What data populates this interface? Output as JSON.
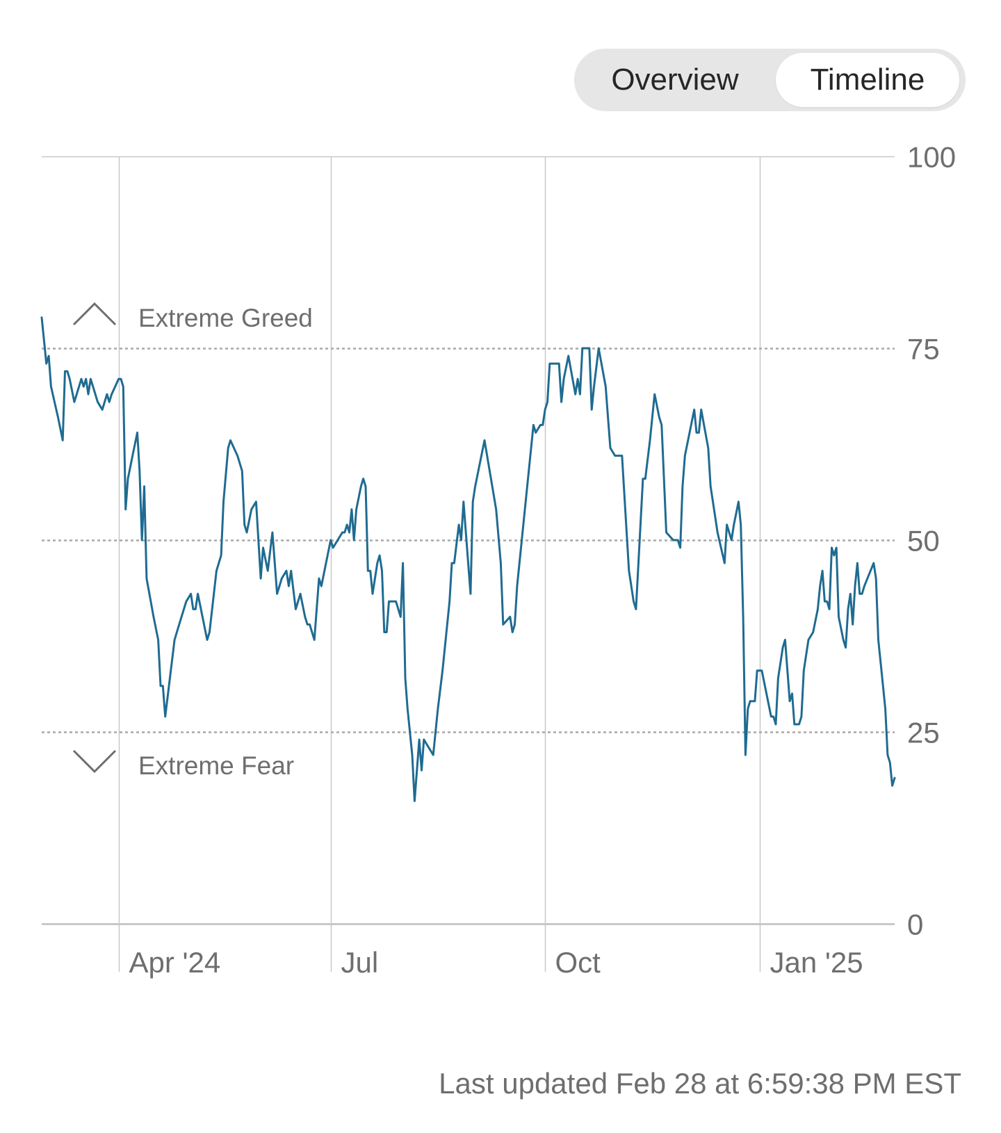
{
  "toggle": {
    "overview_label": "Overview",
    "timeline_label": "Timeline",
    "active": "Timeline"
  },
  "zones": {
    "greed_label": "Extreme Greed",
    "fear_label": "Extreme Fear"
  },
  "footer": {
    "last_updated": "Last updated Feb 28 at 6:59:38 PM EST"
  },
  "colors": {
    "line": "#1f6b91",
    "grid": "#c8c8c8",
    "dashed": "#a8a8a8",
    "tick_text": "#6e6e6e",
    "toggle_bg": "#e6e6e6"
  },
  "chart_data": {
    "type": "line",
    "title": "",
    "xlabel": "",
    "ylabel": "",
    "ylim": [
      0,
      100
    ],
    "yticks": [
      {
        "value": 100,
        "label": "100"
      },
      {
        "value": 75,
        "label": "75"
      },
      {
        "value": 50,
        "label": "50"
      },
      {
        "value": 25,
        "label": "25"
      },
      {
        "value": 0,
        "label": "0"
      }
    ],
    "xlim": [
      "2024-02-28",
      "2025-02-28"
    ],
    "xticks": [
      {
        "date": "2024-04-01",
        "label": "Apr '24"
      },
      {
        "date": "2024-07-01",
        "label": "Jul"
      },
      {
        "date": "2024-10-01",
        "label": "Oct"
      },
      {
        "date": "2025-01-01",
        "label": "Jan '25"
      }
    ],
    "dashed_levels": [
      75,
      50,
      25
    ],
    "grid": true,
    "series": [
      {
        "points": [
          [
            "2024-02-28",
            79
          ],
          [
            "2024-03-01",
            73
          ],
          [
            "2024-03-02",
            74
          ],
          [
            "2024-03-03",
            70
          ],
          [
            "2024-03-06",
            66
          ],
          [
            "2024-03-08",
            63
          ],
          [
            "2024-03-09",
            72
          ],
          [
            "2024-03-10",
            72
          ],
          [
            "2024-03-11",
            71
          ],
          [
            "2024-03-13",
            68
          ],
          [
            "2024-03-16",
            71
          ],
          [
            "2024-03-17",
            70
          ],
          [
            "2024-03-18",
            71
          ],
          [
            "2024-03-19",
            69
          ],
          [
            "2024-03-20",
            71
          ],
          [
            "2024-03-21",
            70
          ],
          [
            "2024-03-23",
            68
          ],
          [
            "2024-03-25",
            67
          ],
          [
            "2024-03-26",
            68
          ],
          [
            "2024-03-27",
            69
          ],
          [
            "2024-03-28",
            68
          ],
          [
            "2024-03-29",
            69
          ],
          [
            "2024-04-01",
            71
          ],
          [
            "2024-04-02",
            71
          ],
          [
            "2024-04-03",
            70
          ],
          [
            "2024-04-04",
            54
          ],
          [
            "2024-04-05",
            58
          ],
          [
            "2024-04-07",
            61
          ],
          [
            "2024-04-09",
            64
          ],
          [
            "2024-04-10",
            59
          ],
          [
            "2024-04-11",
            50
          ],
          [
            "2024-04-12",
            57
          ],
          [
            "2024-04-13",
            45
          ],
          [
            "2024-04-16",
            40
          ],
          [
            "2024-04-18",
            37
          ],
          [
            "2024-04-19",
            31
          ],
          [
            "2024-04-20",
            31
          ],
          [
            "2024-04-21",
            27
          ],
          [
            "2024-04-23",
            32
          ],
          [
            "2024-04-25",
            37
          ],
          [
            "2024-04-26",
            38
          ],
          [
            "2024-04-28",
            40
          ],
          [
            "2024-04-30",
            42
          ],
          [
            "2024-05-02",
            43
          ],
          [
            "2024-05-03",
            41
          ],
          [
            "2024-05-04",
            41
          ],
          [
            "2024-05-05",
            43
          ],
          [
            "2024-05-07",
            40
          ],
          [
            "2024-05-09",
            37
          ],
          [
            "2024-05-10",
            38
          ],
          [
            "2024-05-13",
            46
          ],
          [
            "2024-05-15",
            48
          ],
          [
            "2024-05-16",
            55
          ],
          [
            "2024-05-18",
            62
          ],
          [
            "2024-05-19",
            63
          ],
          [
            "2024-05-22",
            61
          ],
          [
            "2024-05-24",
            59
          ],
          [
            "2024-05-25",
            52
          ],
          [
            "2024-05-26",
            51
          ],
          [
            "2024-05-28",
            54
          ],
          [
            "2024-05-30",
            55
          ],
          [
            "2024-06-01",
            45
          ],
          [
            "2024-06-02",
            49
          ],
          [
            "2024-06-04",
            46
          ],
          [
            "2024-06-06",
            51
          ],
          [
            "2024-06-08",
            43
          ],
          [
            "2024-06-10",
            45
          ],
          [
            "2024-06-12",
            46
          ],
          [
            "2024-06-13",
            44
          ],
          [
            "2024-06-14",
            46
          ],
          [
            "2024-06-16",
            41
          ],
          [
            "2024-06-18",
            43
          ],
          [
            "2024-06-20",
            40
          ],
          [
            "2024-06-21",
            39
          ],
          [
            "2024-06-22",
            39
          ],
          [
            "2024-06-24",
            37
          ],
          [
            "2024-06-26",
            45
          ],
          [
            "2024-06-27",
            44
          ],
          [
            "2024-06-29",
            47
          ],
          [
            "2024-07-01",
            50
          ],
          [
            "2024-07-02",
            49
          ],
          [
            "2024-07-04",
            50
          ],
          [
            "2024-07-06",
            51
          ],
          [
            "2024-07-07",
            51
          ],
          [
            "2024-07-08",
            52
          ],
          [
            "2024-07-09",
            51
          ],
          [
            "2024-07-10",
            54
          ],
          [
            "2024-07-11",
            50
          ],
          [
            "2024-07-12",
            54
          ],
          [
            "2024-07-14",
            57
          ],
          [
            "2024-07-15",
            58
          ],
          [
            "2024-07-16",
            57
          ],
          [
            "2024-07-17",
            46
          ],
          [
            "2024-07-18",
            46
          ],
          [
            "2024-07-19",
            43
          ],
          [
            "2024-07-21",
            47
          ],
          [
            "2024-07-22",
            48
          ],
          [
            "2024-07-23",
            46
          ],
          [
            "2024-07-24",
            38
          ],
          [
            "2024-07-25",
            38
          ],
          [
            "2024-07-26",
            42
          ],
          [
            "2024-07-29",
            42
          ],
          [
            "2024-07-31",
            40
          ],
          [
            "2024-08-01",
            47
          ],
          [
            "2024-08-02",
            32
          ],
          [
            "2024-08-03",
            28
          ],
          [
            "2024-08-05",
            22
          ],
          [
            "2024-08-06",
            16
          ],
          [
            "2024-08-08",
            24
          ],
          [
            "2024-08-09",
            20
          ],
          [
            "2024-08-10",
            24
          ],
          [
            "2024-08-14",
            22
          ],
          [
            "2024-08-16",
            28
          ],
          [
            "2024-08-18",
            33
          ],
          [
            "2024-08-21",
            42
          ],
          [
            "2024-08-22",
            47
          ],
          [
            "2024-08-23",
            47
          ],
          [
            "2024-08-25",
            52
          ],
          [
            "2024-08-26",
            50
          ],
          [
            "2024-08-27",
            55
          ],
          [
            "2024-08-30",
            43
          ],
          [
            "2024-08-31",
            55
          ],
          [
            "2024-09-01",
            57
          ],
          [
            "2024-09-05",
            63
          ],
          [
            "2024-09-10",
            54
          ],
          [
            "2024-09-12",
            47
          ],
          [
            "2024-09-13",
            39
          ],
          [
            "2024-09-16",
            40
          ],
          [
            "2024-09-17",
            38
          ],
          [
            "2024-09-18",
            39
          ],
          [
            "2024-09-19",
            44
          ],
          [
            "2024-09-23",
            56
          ],
          [
            "2024-09-26",
            65
          ],
          [
            "2024-09-27",
            64
          ],
          [
            "2024-09-29",
            65
          ],
          [
            "2024-09-30",
            65
          ],
          [
            "2024-10-01",
            67
          ],
          [
            "2024-10-02",
            68
          ],
          [
            "2024-10-03",
            73
          ],
          [
            "2024-10-07",
            73
          ],
          [
            "2024-10-08",
            68
          ],
          [
            "2024-10-09",
            71
          ],
          [
            "2024-10-11",
            74
          ],
          [
            "2024-10-14",
            69
          ],
          [
            "2024-10-15",
            71
          ],
          [
            "2024-10-16",
            69
          ],
          [
            "2024-10-17",
            75
          ],
          [
            "2024-10-18",
            75
          ],
          [
            "2024-10-20",
            75
          ],
          [
            "2024-10-21",
            67
          ],
          [
            "2024-10-22",
            70
          ],
          [
            "2024-10-24",
            75
          ],
          [
            "2024-10-27",
            70
          ],
          [
            "2024-10-28",
            66
          ],
          [
            "2024-10-29",
            62
          ],
          [
            "2024-10-31",
            61
          ],
          [
            "2024-11-01",
            61
          ],
          [
            "2024-11-03",
            61
          ],
          [
            "2024-11-06",
            46
          ],
          [
            "2024-11-08",
            42
          ],
          [
            "2024-11-09",
            41
          ],
          [
            "2024-11-12",
            58
          ],
          [
            "2024-11-13",
            58
          ],
          [
            "2024-11-15",
            63
          ],
          [
            "2024-11-17",
            69
          ],
          [
            "2024-11-19",
            66
          ],
          [
            "2024-11-20",
            65
          ],
          [
            "2024-11-22",
            51
          ],
          [
            "2024-11-25",
            50
          ],
          [
            "2024-11-27",
            50
          ],
          [
            "2024-11-28",
            49
          ],
          [
            "2024-11-29",
            57
          ],
          [
            "2024-11-30",
            61
          ],
          [
            "2024-12-02",
            64
          ],
          [
            "2024-12-04",
            67
          ],
          [
            "2024-12-05",
            64
          ],
          [
            "2024-12-06",
            64
          ],
          [
            "2024-12-07",
            67
          ],
          [
            "2024-12-10",
            62
          ],
          [
            "2024-12-11",
            57
          ],
          [
            "2024-12-13",
            53
          ],
          [
            "2024-12-14",
            51
          ],
          [
            "2024-12-17",
            47
          ],
          [
            "2024-12-18",
            52
          ],
          [
            "2024-12-19",
            51
          ],
          [
            "2024-12-20",
            50
          ],
          [
            "2024-12-21",
            52
          ],
          [
            "2024-12-23",
            55
          ],
          [
            "2024-12-24",
            52
          ],
          [
            "2024-12-25",
            40
          ],
          [
            "2024-12-26",
            22
          ],
          [
            "2024-12-27",
            28
          ],
          [
            "2024-12-28",
            29
          ],
          [
            "2024-12-30",
            29
          ],
          [
            "2024-12-31",
            33
          ],
          [
            "2025-01-02",
            33
          ],
          [
            "2025-01-04",
            30
          ],
          [
            "2025-01-06",
            27
          ],
          [
            "2025-01-07",
            27
          ],
          [
            "2025-01-08",
            26
          ],
          [
            "2025-01-09",
            32
          ],
          [
            "2025-01-11",
            36
          ],
          [
            "2025-01-12",
            37
          ],
          [
            "2025-01-14",
            29
          ],
          [
            "2025-01-15",
            30
          ],
          [
            "2025-01-16",
            26
          ],
          [
            "2025-01-18",
            26
          ],
          [
            "2025-01-19",
            27
          ],
          [
            "2025-01-20",
            33
          ],
          [
            "2025-01-22",
            37
          ],
          [
            "2025-01-24",
            38
          ],
          [
            "2025-01-26",
            41
          ],
          [
            "2025-01-27",
            44
          ],
          [
            "2025-01-28",
            46
          ],
          [
            "2025-01-29",
            42
          ],
          [
            "2025-01-30",
            42
          ],
          [
            "2025-01-31",
            41
          ],
          [
            "2025-02-01",
            49
          ],
          [
            "2025-02-02",
            48
          ],
          [
            "2025-02-03",
            49
          ],
          [
            "2025-02-04",
            40
          ],
          [
            "2025-02-06",
            37
          ],
          [
            "2025-02-07",
            36
          ],
          [
            "2025-02-08",
            41
          ],
          [
            "2025-02-09",
            43
          ],
          [
            "2025-02-10",
            39
          ],
          [
            "2025-02-11",
            44
          ],
          [
            "2025-02-12",
            47
          ],
          [
            "2025-02-13",
            43
          ],
          [
            "2025-02-14",
            43
          ],
          [
            "2025-02-15",
            44
          ],
          [
            "2025-02-19",
            47
          ],
          [
            "2025-02-20",
            45
          ],
          [
            "2025-02-21",
            37
          ],
          [
            "2025-02-22",
            34
          ],
          [
            "2025-02-24",
            28
          ],
          [
            "2025-02-25",
            22
          ],
          [
            "2025-02-26",
            21
          ],
          [
            "2025-02-27",
            18
          ],
          [
            "2025-02-28",
            19
          ]
        ]
      }
    ]
  }
}
